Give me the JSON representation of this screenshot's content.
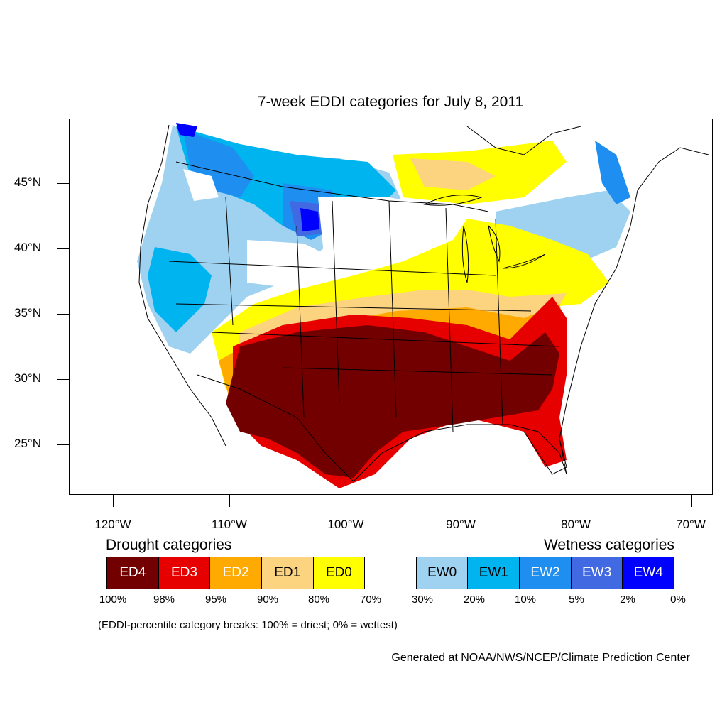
{
  "title": "7-week EDDI categories for July 8, 2011",
  "lat_labels": [
    "45°N",
    "40°N",
    "35°N",
    "30°N",
    "25°N"
  ],
  "lon_labels": [
    "120°W",
    "110°W",
    "100°W",
    "90°W",
    "80°W",
    "70°W"
  ],
  "drought_heading": "Drought categories",
  "wetness_heading": "Wetness categories",
  "legend": [
    {
      "label": "ED4",
      "color": "#730000",
      "text_color": "#ffffff"
    },
    {
      "label": "ED3",
      "color": "#e60000",
      "text_color": "#ffffff"
    },
    {
      "label": "ED2",
      "color": "#ffaa00",
      "text_color": "#ffffff"
    },
    {
      "label": "ED1",
      "color": "#fcd37f",
      "text_color": "#000000"
    },
    {
      "label": "ED0",
      "color": "#ffff00",
      "text_color": "#000000"
    },
    {
      "label": "",
      "color": "#ffffff",
      "text_color": "#000000"
    },
    {
      "label": "EW0",
      "color": "#9fd2f0",
      "text_color": "#000000"
    },
    {
      "label": "EW1",
      "color": "#00b4f0",
      "text_color": "#000000"
    },
    {
      "label": "EW2",
      "color": "#1e8ef0",
      "text_color": "#ffffff"
    },
    {
      "label": "EW3",
      "color": "#4169e1",
      "text_color": "#ffffff"
    },
    {
      "label": "EW4",
      "color": "#0000ff",
      "text_color": "#ffffff"
    }
  ],
  "percent_labels": [
    "100%",
    "98%",
    "95%",
    "90%",
    "80%",
    "70%",
    "30%",
    "20%",
    "10%",
    "5%",
    "2%",
    "0%"
  ],
  "note": "(EDDI-percentile category breaks: 100% = driest; 0% = wettest)",
  "credit": "Generated at NOAA/NWS/NCEP/Climate Prediction Center"
}
